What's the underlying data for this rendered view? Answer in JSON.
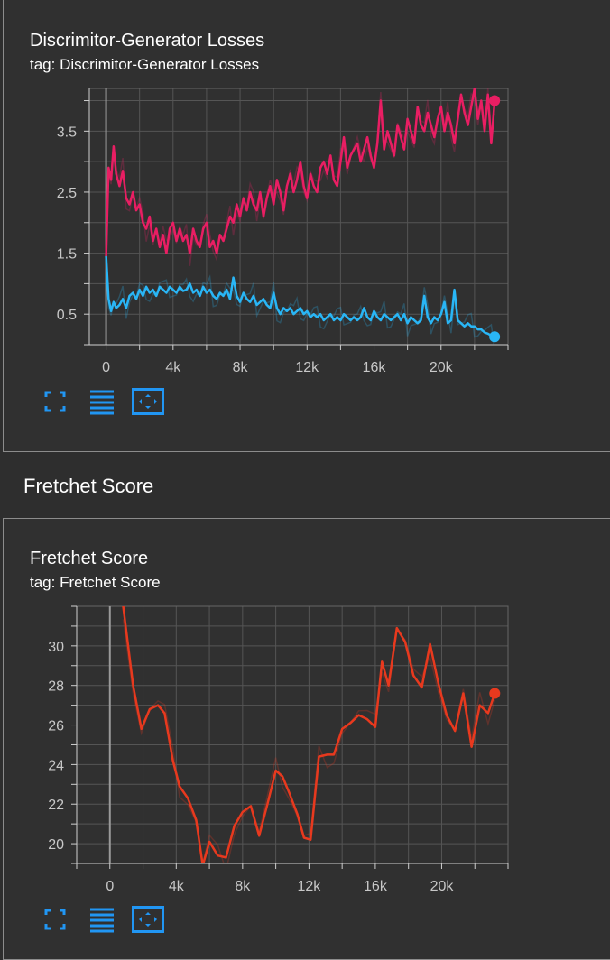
{
  "cards": [
    {
      "title": "Discrimitor-Generator Losses",
      "tag": "tag: Discrimitor-Generator Losses"
    },
    {
      "title": "Fretchet Score",
      "tag": "tag: Fretchet Score"
    }
  ],
  "section": {
    "title": "Fretchet Score"
  },
  "toolbar": {
    "icons": [
      "fullscreen-icon",
      "toggle-log-icon",
      "fit-domain-icon"
    ],
    "color": "#2196f3"
  },
  "chart_data": [
    {
      "type": "line",
      "xlim": [
        -1000,
        24000
      ],
      "ylim": [
        0,
        4.2
      ],
      "x_ticks": [
        0,
        4000,
        8000,
        12000,
        16000,
        20000
      ],
      "x_tick_labels": [
        "0",
        "4k",
        "8k",
        "12k",
        "16k",
        "20k"
      ],
      "y_ticks": [
        0.5,
        1.5,
        2.5,
        3.5
      ],
      "y_tick_labels": [
        "0.5",
        "1.5",
        "2.5",
        "3.5"
      ],
      "grid": true,
      "series": [
        {
          "color": "#e91e63",
          "x": [
            0,
            150,
            300,
            450,
            600,
            800,
            1000,
            1200,
            1400,
            1600,
            1800,
            2000,
            2200,
            2400,
            2600,
            2800,
            3000,
            3200,
            3400,
            3600,
            3800,
            4000,
            4200,
            4400,
            4600,
            4800,
            5000,
            5200,
            5400,
            5600,
            5800,
            6000,
            6200,
            6400,
            6600,
            6800,
            7000,
            7200,
            7400,
            7600,
            7800,
            8000,
            8200,
            8400,
            8600,
            8800,
            9000,
            9200,
            9400,
            9600,
            9800,
            10000,
            10200,
            10400,
            10600,
            10800,
            11000,
            11200,
            11400,
            11600,
            11800,
            12000,
            12200,
            12400,
            12600,
            12800,
            13000,
            13200,
            13400,
            13600,
            13800,
            14000,
            14200,
            14400,
            14600,
            14800,
            15000,
            15200,
            15400,
            15600,
            15800,
            16000,
            16200,
            16400,
            16600,
            16800,
            17000,
            17200,
            17400,
            17600,
            17800,
            18000,
            18200,
            18400,
            18600,
            18800,
            19000,
            19200,
            19400,
            19600,
            19800,
            20000,
            20200,
            20400,
            20600,
            20800,
            21000,
            21200,
            21400,
            21600,
            21800,
            22000,
            22200,
            22400,
            22600,
            22800,
            23000,
            23200
          ],
          "y": [
            1.45,
            2.9,
            2.7,
            3.25,
            2.8,
            2.6,
            2.85,
            2.4,
            2.3,
            2.5,
            2.2,
            2.3,
            2.0,
            1.9,
            2.1,
            1.7,
            1.9,
            1.6,
            1.8,
            1.5,
            1.9,
            2.0,
            1.7,
            1.9,
            1.7,
            1.8,
            1.5,
            1.9,
            1.7,
            1.6,
            1.9,
            2.0,
            1.6,
            1.7,
            1.5,
            1.8,
            1.7,
            1.9,
            2.1,
            2.0,
            2.3,
            2.1,
            2.4,
            2.2,
            2.5,
            2.3,
            2.2,
            2.5,
            2.1,
            2.4,
            2.6,
            2.3,
            2.7,
            2.5,
            2.2,
            2.6,
            2.8,
            2.5,
            2.7,
            3.0,
            2.6,
            2.4,
            2.8,
            2.6,
            2.5,
            2.9,
            3.0,
            2.8,
            3.1,
            2.7,
            2.6,
            3.0,
            3.4,
            2.9,
            3.1,
            3.2,
            3.3,
            3.0,
            3.2,
            3.4,
            3.1,
            2.9,
            3.3,
            4.0,
            3.2,
            3.5,
            3.3,
            3.1,
            3.6,
            3.4,
            3.2,
            3.7,
            3.5,
            3.3,
            3.9,
            3.6,
            3.5,
            3.8,
            3.6,
            3.4,
            3.7,
            3.9,
            3.5,
            3.8,
            3.6,
            3.3,
            3.7,
            4.1,
            3.8,
            3.6,
            3.9,
            4.2,
            3.7,
            4.0,
            3.5,
            4.1,
            3.3,
            4.0
          ]
        },
        {
          "color": "#29b6f6",
          "x": [
            0,
            150,
            300,
            450,
            600,
            800,
            1000,
            1200,
            1400,
            1600,
            1800,
            2000,
            2200,
            2400,
            2600,
            2800,
            3000,
            3200,
            3400,
            3600,
            3800,
            4000,
            4200,
            4400,
            4600,
            4800,
            5000,
            5200,
            5400,
            5600,
            5800,
            6000,
            6200,
            6400,
            6600,
            6800,
            7000,
            7200,
            7400,
            7600,
            7800,
            8000,
            8200,
            8400,
            8600,
            8800,
            9000,
            9200,
            9400,
            9600,
            9800,
            10000,
            10200,
            10400,
            10600,
            10800,
            11000,
            11200,
            11400,
            11600,
            11800,
            12000,
            12200,
            12400,
            12600,
            12800,
            13000,
            13200,
            13400,
            13600,
            13800,
            14000,
            14200,
            14400,
            14600,
            14800,
            15000,
            15200,
            15400,
            15600,
            15800,
            16000,
            16200,
            16400,
            16600,
            16800,
            17000,
            17200,
            17400,
            17600,
            17800,
            18000,
            18200,
            18400,
            18600,
            18800,
            19000,
            19200,
            19400,
            19600,
            19800,
            20000,
            20200,
            20400,
            20600,
            20800,
            21000,
            21200,
            21400,
            21600,
            21800,
            22000,
            22200,
            22400,
            22600,
            22800,
            23000,
            23200
          ],
          "y": [
            1.45,
            0.75,
            0.55,
            0.7,
            0.6,
            0.65,
            0.75,
            0.6,
            0.8,
            0.85,
            0.75,
            0.9,
            0.8,
            0.95,
            0.85,
            0.9,
            0.8,
            0.95,
            0.9,
            0.85,
            0.95,
            0.9,
            0.85,
            0.95,
            0.88,
            0.9,
            1.0,
            0.85,
            0.9,
            0.8,
            0.95,
            0.85,
            0.9,
            0.8,
            0.75,
            0.85,
            0.8,
            0.9,
            0.75,
            1.1,
            0.8,
            0.7,
            0.85,
            0.75,
            0.7,
            0.8,
            0.65,
            0.7,
            0.75,
            0.65,
            0.6,
            0.85,
            0.6,
            0.5,
            0.6,
            0.55,
            0.6,
            0.5,
            0.55,
            0.6,
            0.5,
            0.55,
            0.45,
            0.5,
            0.45,
            0.5,
            0.4,
            0.45,
            0.5,
            0.4,
            0.45,
            0.4,
            0.5,
            0.45,
            0.4,
            0.45,
            0.4,
            0.45,
            0.6,
            0.45,
            0.4,
            0.55,
            0.45,
            0.4,
            0.5,
            0.45,
            0.4,
            0.45,
            0.5,
            0.4,
            0.5,
            0.35,
            0.45,
            0.4,
            0.35,
            0.4,
            0.8,
            0.45,
            0.35,
            0.45,
            0.4,
            0.5,
            0.7,
            0.35,
            0.4,
            0.9,
            0.4,
            0.35,
            0.3,
            0.35,
            0.3,
            0.3,
            0.25,
            0.25,
            0.2,
            0.18,
            0.15,
            0.13
          ]
        }
      ]
    },
    {
      "type": "line",
      "xlim": [
        -2000,
        24000
      ],
      "ylim": [
        19,
        32
      ],
      "x_ticks": [
        0,
        4000,
        8000,
        12000,
        16000,
        20000
      ],
      "x_tick_labels": [
        "0",
        "4k",
        "8k",
        "12k",
        "16k",
        "20k"
      ],
      "y_ticks": [
        20,
        22,
        24,
        26,
        28,
        30
      ],
      "y_tick_labels": [
        "20",
        "22",
        "24",
        "26",
        "28",
        "30"
      ],
      "grid": true,
      "series": [
        {
          "color": "#e8391e",
          "x": [
            800,
            1400,
            1900,
            2400,
            2900,
            3300,
            3800,
            4200,
            4700,
            5200,
            5600,
            6000,
            6500,
            7000,
            7500,
            8000,
            8500,
            9000,
            9500,
            10000,
            10400,
            10800,
            11300,
            11700,
            12100,
            12600,
            13100,
            13500,
            14000,
            14500,
            15000,
            15500,
            16000,
            16400,
            16800,
            17300,
            17800,
            18300,
            18800,
            19300,
            19800,
            20300,
            20800,
            21300,
            21800,
            22300,
            22800,
            23200
          ],
          "y": [
            32,
            28,
            25.8,
            26.8,
            27,
            26.6,
            24.2,
            22.9,
            22.3,
            21.2,
            18.9,
            20.1,
            19.4,
            19.3,
            20.9,
            21.6,
            21.9,
            20.4,
            22,
            23.7,
            23.4,
            22.6,
            21.5,
            20.3,
            20.2,
            24.4,
            24.5,
            24.5,
            25.8,
            26.1,
            26.5,
            26.3,
            25.9,
            29.2,
            28,
            30.9,
            30.2,
            28.5,
            27.9,
            30.1,
            28.1,
            26.5,
            25.7,
            27.6,
            24.9,
            27,
            26.6,
            27.6
          ]
        }
      ]
    }
  ]
}
